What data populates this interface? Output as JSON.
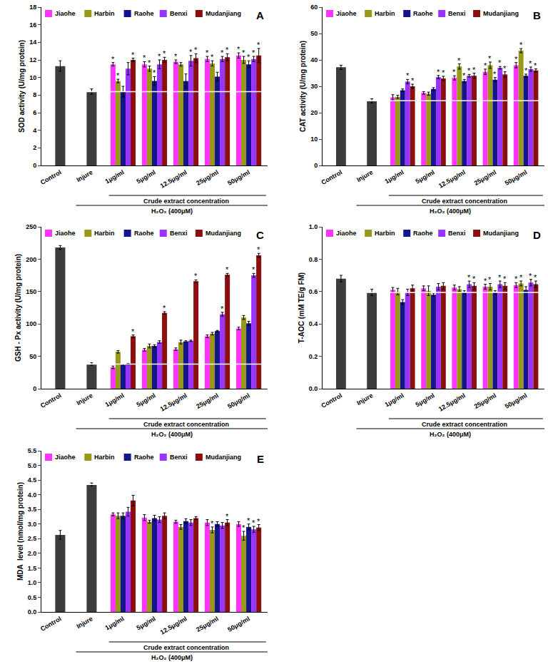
{
  "chart_data": [
    {
      "type": "bar",
      "panel_label": "A",
      "y_label": "SOD activity (U/mg protein)",
      "categories": [
        "Control",
        "Injure",
        "1μg/ml",
        "5μg/ml",
        "12.5μg/ml",
        "25μg/ml",
        "50μg/ml"
      ],
      "group_label": "Crude extract concentration",
      "treatment_label": "H₂O₂ (400μM)",
      "ylim": [
        0,
        18
      ],
      "yticks": [
        0,
        2,
        4,
        6,
        8,
        10,
        12,
        14,
        16,
        18
      ],
      "grid": false,
      "legend": "top",
      "series": [
        {
          "color": "#3c3c3c",
          "values": [
            11.3,
            8.4,
            null,
            null,
            null,
            null,
            null
          ],
          "errors": [
            0.6,
            0.3,
            null,
            null,
            null,
            null,
            null
          ]
        },
        {
          "name": "Jiaohe",
          "color": "#ff33ff",
          "values": [
            null,
            null,
            11.5,
            11.5,
            11.8,
            12.1,
            12.5
          ],
          "errors": [
            null,
            null,
            0.2,
            0.3,
            0.2,
            0.3,
            0.3
          ],
          "marks": [
            null,
            null,
            "*",
            "*",
            "*",
            "*",
            "*"
          ]
        },
        {
          "name": "Harbin",
          "color": "#999919",
          "values": [
            null,
            null,
            9.6,
            11.0,
            11.5,
            11.6,
            12.0
          ],
          "errors": [
            null,
            null,
            0.2,
            0.3,
            0.2,
            0.3,
            0.4
          ],
          "marks": [
            null,
            null,
            "*",
            "*",
            null,
            "*",
            "*"
          ]
        },
        {
          "name": "Raohe",
          "color": "#14148c",
          "values": [
            null,
            null,
            8.4,
            9.6,
            9.6,
            10.1,
            11.5
          ],
          "errors": [
            null,
            null,
            0.6,
            0.5,
            0.8,
            0.5,
            0.4
          ],
          "marks": [
            null,
            null,
            null,
            "*",
            null,
            null,
            "*"
          ]
        },
        {
          "name": "Benxi",
          "color": "#9933ff",
          "values": [
            null,
            null,
            11.0,
            11.5,
            11.9,
            12.1,
            12.1
          ],
          "errors": [
            null,
            null,
            0.7,
            0.5,
            0.6,
            0.3,
            0.3
          ],
          "marks": [
            null,
            null,
            null,
            "*",
            "*",
            "*",
            "*"
          ]
        },
        {
          "name": "Mudanjiang",
          "color": "#8b0f0f",
          "values": [
            null,
            null,
            12.0,
            12.0,
            12.2,
            12.3,
            12.5
          ],
          "errors": [
            null,
            null,
            0.2,
            0.3,
            0.5,
            0.4,
            0.8
          ],
          "marks": [
            null,
            null,
            "*",
            "*",
            "*",
            "*",
            "*"
          ]
        }
      ]
    },
    {
      "type": "bar",
      "panel_label": "B",
      "y_label": "CAT activity (U/mg protein)",
      "categories": [
        "Control",
        "Injure",
        "1μg/ml",
        "5μg/ml",
        "12.5μg/ml",
        "25μg/ml",
        "50μg/ml"
      ],
      "group_label": "Crude extract concentration",
      "treatment_label": "H₂O₂ (400μM)",
      "ylim": [
        0,
        60
      ],
      "yticks": [
        0,
        10,
        20,
        30,
        40,
        50,
        60
      ],
      "grid": false,
      "legend": "top",
      "series": [
        {
          "color": "#3c3c3c",
          "values": [
            37.2,
            24.5,
            null,
            null,
            null,
            null,
            null
          ],
          "errors": [
            0.8,
            0.8,
            null,
            null,
            null,
            null,
            null
          ]
        },
        {
          "name": "Jiaohe",
          "color": "#ff33ff",
          "values": [
            null,
            null,
            25.8,
            27.5,
            33.2,
            35.5,
            38.0
          ],
          "errors": [
            null,
            null,
            1.0,
            0.5,
            0.8,
            1.0,
            1.0
          ],
          "marks": [
            null,
            null,
            null,
            null,
            "*",
            "*",
            "*"
          ]
        },
        {
          "name": "Harbin",
          "color": "#999919",
          "values": [
            null,
            null,
            26.0,
            27.2,
            37.5,
            38.0,
            43.5
          ],
          "errors": [
            null,
            null,
            0.6,
            0.6,
            1.0,
            1.2,
            0.8
          ],
          "marks": [
            null,
            null,
            null,
            null,
            "*",
            "*",
            "*"
          ]
        },
        {
          "name": "Raohe",
          "color": "#14148c",
          "values": [
            null,
            null,
            28.5,
            29.0,
            32.0,
            32.5,
            34.0
          ],
          "errors": [
            null,
            null,
            0.5,
            0.5,
            0.6,
            0.8,
            0.6
          ],
          "marks": [
            null,
            null,
            null,
            null,
            "*",
            "*",
            "*"
          ]
        },
        {
          "name": "Benxi",
          "color": "#9933ff",
          "values": [
            null,
            null,
            31.8,
            33.5,
            34.0,
            37.0,
            36.5
          ],
          "errors": [
            null,
            null,
            0.8,
            0.6,
            0.5,
            0.5,
            0.8
          ],
          "marks": [
            null,
            null,
            "*",
            "*",
            "*",
            "*",
            "*"
          ]
        },
        {
          "name": "Mudanjiang",
          "color": "#8b0f0f",
          "values": [
            null,
            null,
            30.0,
            33.0,
            34.0,
            34.5,
            36.0
          ],
          "errors": [
            null,
            null,
            0.8,
            0.8,
            1.0,
            1.0,
            0.6
          ],
          "marks": [
            null,
            null,
            "*",
            "*",
            "*",
            "*",
            "*"
          ]
        }
      ]
    },
    {
      "type": "bar",
      "panel_label": "C",
      "y_label": "GSH - Px activity (U/mg protein)",
      "categories": [
        "Control",
        "Injure",
        "1μg/ml",
        "5μg/ml",
        "12.5μg/ml",
        "25μg/ml",
        "50μg/ml"
      ],
      "group_label": "Crude extract concentration",
      "treatment_label": "H₂O₂ (400μM)",
      "ylim": [
        0,
        250
      ],
      "yticks": [
        0,
        50,
        100,
        150,
        200,
        250
      ],
      "grid": false,
      "legend": "top",
      "series": [
        {
          "color": "#3c3c3c",
          "values": [
            218,
            38,
            null,
            null,
            null,
            null,
            null
          ],
          "errors": [
            3,
            2,
            null,
            null,
            null,
            null,
            null
          ]
        },
        {
          "name": "Jiaohe",
          "color": "#ff33ff",
          "values": [
            null,
            null,
            33,
            60,
            61,
            81,
            93
          ],
          "errors": [
            null,
            null,
            2,
            2,
            2,
            2,
            2
          ],
          "marks": [
            null,
            null,
            null,
            null,
            null,
            null,
            null
          ]
        },
        {
          "name": "Harbin",
          "color": "#999919",
          "values": [
            null,
            null,
            57,
            66,
            72,
            85,
            110
          ],
          "errors": [
            null,
            null,
            2,
            3,
            3,
            2,
            3
          ],
          "marks": [
            null,
            null,
            null,
            null,
            null,
            null,
            null
          ]
        },
        {
          "name": "Raohe",
          "color": "#14148c",
          "values": [
            null,
            null,
            37,
            66,
            73,
            89,
            101
          ],
          "errors": [
            null,
            null,
            1,
            2,
            1,
            1,
            3
          ],
          "marks": [
            null,
            null,
            null,
            null,
            null,
            null,
            null
          ]
        },
        {
          "name": "Benxi",
          "color": "#9933ff",
          "values": [
            null,
            null,
            38,
            72,
            74,
            115,
            175
          ],
          "errors": [
            null,
            null,
            1,
            2,
            1,
            3,
            3
          ],
          "marks": [
            null,
            null,
            null,
            null,
            null,
            "*",
            "*"
          ]
        },
        {
          "name": "Mudanjiang",
          "color": "#8b0f0f",
          "values": [
            null,
            null,
            81,
            117,
            166,
            176,
            206
          ],
          "errors": [
            null,
            null,
            2,
            2,
            2,
            2,
            3
          ],
          "marks": [
            null,
            null,
            "*",
            "*",
            "*",
            "*",
            "*"
          ]
        }
      ]
    },
    {
      "type": "bar",
      "panel_label": "D",
      "y_label": "T-AOC (mM TE/g FM)",
      "categories": [
        "Control",
        "Injure",
        "1μg/ml",
        "5μg/ml",
        "12.5μg/ml",
        "25μg/ml",
        "50μg/ml"
      ],
      "group_label": "Crude extract concentration",
      "treatment_label": "H₂O₂ (400μM)",
      "ylim": [
        0,
        1
      ],
      "yticks": [
        {
          "value": 0,
          "label": "0.0"
        },
        0.2,
        0.4,
        0.6,
        0.8,
        {
          "value": 1,
          "label": "1.0"
        }
      ],
      "grid": false,
      "legend": "top",
      "series": [
        {
          "color": "#3c3c3c",
          "values": [
            0.68,
            0.595,
            null,
            null,
            null,
            null,
            null
          ],
          "errors": [
            0.02,
            0.02,
            null,
            null,
            null,
            null,
            null
          ]
        },
        {
          "name": "Jiaohe",
          "color": "#ff33ff",
          "values": [
            null,
            null,
            0.61,
            0.62,
            0.625,
            0.63,
            0.64
          ],
          "errors": [
            null,
            null,
            0.015,
            0.015,
            0.015,
            0.015,
            0.015
          ],
          "marks": [
            null,
            null,
            null,
            null,
            null,
            "*",
            "*"
          ]
        },
        {
          "name": "Harbin",
          "color": "#999919",
          "values": [
            null,
            null,
            0.6,
            0.605,
            0.615,
            0.63,
            0.65
          ],
          "errors": [
            null,
            null,
            0.02,
            0.03,
            0.015,
            0.02,
            0.015
          ],
          "marks": [
            null,
            null,
            null,
            null,
            null,
            "*",
            "*"
          ]
        },
        {
          "name": "Raohe",
          "color": "#14148c",
          "values": [
            null,
            null,
            0.535,
            0.58,
            0.595,
            0.595,
            0.61
          ],
          "errors": [
            null,
            null,
            0.015,
            0.01,
            0.01,
            0.01,
            0.02
          ],
          "marks": [
            null,
            null,
            null,
            null,
            null,
            null,
            null
          ]
        },
        {
          "name": "Benxi",
          "color": "#9933ff",
          "values": [
            null,
            null,
            0.595,
            0.63,
            0.645,
            0.645,
            0.655
          ],
          "errors": [
            null,
            null,
            0.02,
            0.02,
            0.02,
            0.02,
            0.02
          ],
          "marks": [
            null,
            null,
            null,
            null,
            "*",
            "*",
            "*"
          ]
        },
        {
          "name": "Mudanjiang",
          "color": "#8b0f0f",
          "values": [
            null,
            null,
            0.62,
            0.635,
            0.635,
            0.635,
            0.645
          ],
          "errors": [
            null,
            null,
            0.02,
            0.02,
            0.02,
            0.02,
            0.02
          ],
          "marks": [
            null,
            null,
            null,
            null,
            "*",
            "*",
            "*"
          ]
        }
      ]
    },
    {
      "type": "bar",
      "panel_label": "E",
      "y_label": "MDA  level (nmol/mg protein)",
      "categories": [
        "Control",
        "Injure",
        "1μg/ml",
        "5μg/ml",
        "12.5μg/ml",
        "25μg/ml",
        "50μg/ml"
      ],
      "group_label": "Crude extract concentration",
      "treatment_label": "H₂O₂ (400μM)",
      "ylim": [
        0,
        5.5
      ],
      "yticks": [
        {
          "value": 0,
          "label": "0.0"
        },
        0.5,
        {
          "value": 1,
          "label": "1.0"
        },
        1.5,
        {
          "value": 2,
          "label": "2.0"
        },
        2.5,
        {
          "value": 3,
          "label": "3.0"
        },
        3.5,
        {
          "value": 4,
          "label": "4.0"
        },
        4.5,
        {
          "value": 5,
          "label": "5.0"
        },
        5.5
      ],
      "grid": false,
      "legend": "top",
      "series": [
        {
          "color": "#3c3c3c",
          "values": [
            2.63,
            4.35,
            null,
            null,
            null,
            null,
            null
          ],
          "errors": [
            0.15,
            0.05,
            null,
            null,
            null,
            null,
            null
          ]
        },
        {
          "name": "Jiaohe",
          "color": "#ff33ff",
          "values": [
            null,
            null,
            3.33,
            3.22,
            3.08,
            3.05,
            3.0
          ],
          "errors": [
            null,
            null,
            0.05,
            0.1,
            0.05,
            0.1,
            0.08
          ],
          "marks": [
            null,
            null,
            null,
            null,
            null,
            null,
            null
          ]
        },
        {
          "name": "Harbin",
          "color": "#999919",
          "values": [
            null,
            null,
            3.28,
            3.08,
            2.9,
            2.8,
            2.6
          ],
          "errors": [
            null,
            null,
            0.1,
            0.05,
            0.08,
            0.1,
            0.15
          ],
          "marks": [
            null,
            null,
            null,
            null,
            null,
            "*",
            "*"
          ]
        },
        {
          "name": "Raohe",
          "color": "#14148c",
          "values": [
            null,
            null,
            3.28,
            3.2,
            3.1,
            3.0,
            2.9
          ],
          "errors": [
            null,
            null,
            0.1,
            0.1,
            0.08,
            0.08,
            0.1
          ],
          "marks": [
            null,
            null,
            null,
            null,
            null,
            null,
            "*"
          ]
        },
        {
          "name": "Benxi",
          "color": "#9933ff",
          "values": [
            null,
            null,
            3.42,
            3.15,
            3.05,
            2.95,
            2.82
          ],
          "errors": [
            null,
            null,
            0.15,
            0.1,
            0.1,
            0.1,
            0.1
          ],
          "marks": [
            null,
            null,
            null,
            null,
            null,
            null,
            "*"
          ]
        },
        {
          "name": "Mudanjiang",
          "color": "#8b0f0f",
          "values": [
            null,
            null,
            3.8,
            3.28,
            3.2,
            3.05,
            2.88
          ],
          "errors": [
            null,
            null,
            0.18,
            0.1,
            0.05,
            0.1,
            0.1
          ],
          "marks": [
            null,
            null,
            null,
            null,
            null,
            "*",
            "*"
          ]
        }
      ]
    }
  ]
}
